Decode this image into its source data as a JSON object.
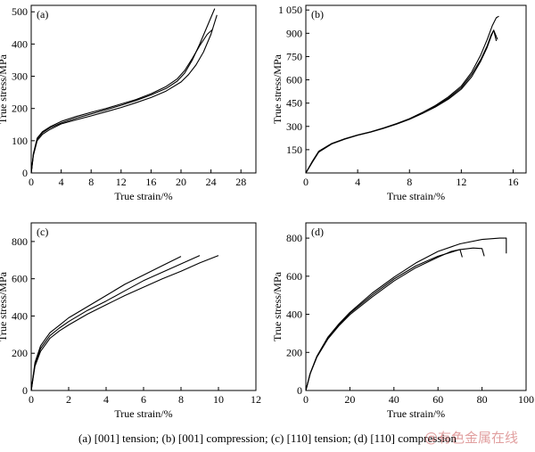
{
  "caption": "(a) [001] tension;   (b) [001] compression; (c) [110] tension; (d) [110] compression",
  "watermark": "@有色金属在线",
  "chart_data": [
    {
      "type": "line",
      "panel_label": "(a)",
      "xlabel": "True strain/%",
      "ylabel": "True stress/MPa",
      "xlim": [
        0,
        30
      ],
      "ylim": [
        0,
        520
      ],
      "xticks": [
        0,
        4,
        8,
        12,
        16,
        20,
        24,
        28
      ],
      "yticks": [
        0,
        100,
        200,
        300,
        400,
        500
      ],
      "ytick_labels": [
        "0",
        "100",
        "200",
        "300",
        "400",
        "500"
      ],
      "series": [
        {
          "x": [
            0,
            0.3,
            0.8,
            1.5,
            2.5,
            4,
            6,
            8,
            10,
            12,
            14,
            16,
            18,
            19.5,
            20.5,
            21.5,
            22.5,
            23.5,
            24.5
          ],
          "y": [
            0,
            60,
            105,
            125,
            140,
            155,
            170,
            183,
            196,
            210,
            225,
            242,
            262,
            285,
            310,
            350,
            400,
            455,
            510
          ]
        },
        {
          "x": [
            0,
            0.3,
            0.8,
            1.5,
            2.5,
            4,
            6,
            8,
            10,
            12,
            14,
            16,
            18,
            20,
            21,
            22,
            23,
            24,
            24.8
          ],
          "y": [
            0,
            55,
            100,
            120,
            135,
            152,
            165,
            177,
            190,
            203,
            218,
            234,
            254,
            282,
            305,
            335,
            375,
            430,
            490
          ]
        },
        {
          "x": [
            0,
            0.3,
            0.8,
            1.5,
            2.5,
            4,
            6,
            8,
            10,
            12,
            14,
            16,
            18,
            19.5,
            20.5,
            21.5,
            22.5,
            23.5,
            24.2
          ],
          "y": [
            0,
            60,
            108,
            128,
            143,
            160,
            175,
            188,
            200,
            214,
            228,
            246,
            268,
            292,
            318,
            355,
            395,
            430,
            445
          ]
        }
      ]
    },
    {
      "type": "line",
      "panel_label": "(b)",
      "xlabel": "True strain/%",
      "ylabel": "True stress/MPa",
      "xlim": [
        0,
        17
      ],
      "ylim": [
        0,
        1080
      ],
      "xticks": [
        0,
        4,
        8,
        12,
        16
      ],
      "yticks": [
        150,
        300,
        450,
        600,
        750,
        900,
        1050
      ],
      "ytick_labels": [
        "150",
        "300",
        "450",
        "600",
        "750",
        "900",
        "1 050"
      ],
      "series": [
        {
          "x": [
            0,
            0.5,
            1,
            2,
            3,
            4,
            5,
            6,
            7,
            8,
            9,
            10,
            11,
            12,
            12.8,
            13.5,
            14,
            14.4,
            14.7,
            14.9
          ],
          "y": [
            0,
            75,
            140,
            190,
            220,
            245,
            265,
            290,
            318,
            350,
            390,
            435,
            490,
            560,
            650,
            760,
            860,
            950,
            1000,
            1010
          ]
        },
        {
          "x": [
            0,
            0.5,
            1,
            2,
            3,
            4,
            5,
            6,
            7,
            8,
            9,
            10,
            11,
            12,
            12.8,
            13.5,
            14,
            14.3,
            14.5,
            14.8
          ],
          "y": [
            0,
            70,
            135,
            187,
            218,
            243,
            263,
            287,
            315,
            345,
            383,
            425,
            475,
            540,
            620,
            720,
            810,
            880,
            920,
            860
          ]
        },
        {
          "x": [
            0,
            0.5,
            1,
            2,
            3,
            4,
            5,
            6,
            7,
            8,
            9,
            10,
            11,
            12,
            12.8,
            13.5,
            14,
            14.3,
            14.5,
            14.7
          ],
          "y": [
            0,
            70,
            135,
            188,
            219,
            244,
            264,
            289,
            316,
            347,
            386,
            430,
            482,
            550,
            635,
            730,
            820,
            890,
            920,
            850
          ]
        }
      ]
    },
    {
      "type": "line",
      "panel_label": "(c)",
      "xlabel": "True strain/%",
      "ylabel": "True stress/MPa",
      "xlim": [
        0,
        12
      ],
      "ylim": [
        0,
        900
      ],
      "xticks": [
        0,
        2,
        4,
        6,
        8,
        10,
        12
      ],
      "yticks": [
        0,
        200,
        400,
        600,
        800
      ],
      "ytick_labels": [
        "0",
        "200",
        "400",
        "600",
        "800"
      ],
      "series": [
        {
          "x": [
            0,
            0.2,
            0.5,
            1,
            1.5,
            2,
            3,
            4,
            5,
            6,
            7,
            8
          ],
          "y": [
            0,
            150,
            240,
            310,
            350,
            390,
            450,
            510,
            570,
            620,
            670,
            720
          ]
        },
        {
          "x": [
            0,
            0.2,
            0.5,
            1,
            1.5,
            2,
            3,
            4,
            5,
            6,
            7,
            8,
            9
          ],
          "y": [
            0,
            140,
            225,
            295,
            335,
            370,
            430,
            480,
            535,
            590,
            635,
            680,
            725
          ]
        },
        {
          "x": [
            0,
            0.2,
            0.5,
            1,
            1.5,
            2,
            3,
            4,
            5,
            6,
            7,
            8,
            9,
            10
          ],
          "y": [
            0,
            130,
            210,
            280,
            320,
            352,
            410,
            460,
            510,
            555,
            600,
            640,
            685,
            725
          ]
        }
      ]
    },
    {
      "type": "line",
      "panel_label": "(d)",
      "xlabel": "True strain/%",
      "ylabel": "True stress/MPa",
      "xlim": [
        0,
        100
      ],
      "ylim": [
        0,
        880
      ],
      "xticks": [
        0,
        20,
        40,
        60,
        80,
        100
      ],
      "yticks": [
        0,
        200,
        400,
        600,
        800
      ],
      "ytick_labels": [
        "0",
        "200",
        "400",
        "600",
        "800"
      ],
      "series": [
        {
          "x": [
            0,
            2,
            5,
            10,
            15,
            20,
            30,
            40,
            50,
            60,
            70,
            80,
            88,
            91,
            91
          ],
          "y": [
            0,
            90,
            180,
            280,
            350,
            410,
            510,
            595,
            670,
            730,
            770,
            793,
            800,
            800,
            720
          ]
        },
        {
          "x": [
            0,
            2,
            5,
            10,
            15,
            20,
            30,
            40,
            50,
            60,
            70,
            76,
            80,
            81
          ],
          "y": [
            0,
            90,
            178,
            275,
            345,
            405,
            500,
            585,
            655,
            705,
            740,
            748,
            745,
            705
          ]
        },
        {
          "x": [
            0,
            2,
            5,
            10,
            15,
            20,
            30,
            40,
            50,
            60,
            66,
            70,
            71
          ],
          "y": [
            0,
            88,
            175,
            270,
            340,
            398,
            490,
            575,
            645,
            700,
            730,
            740,
            700
          ]
        }
      ]
    }
  ]
}
